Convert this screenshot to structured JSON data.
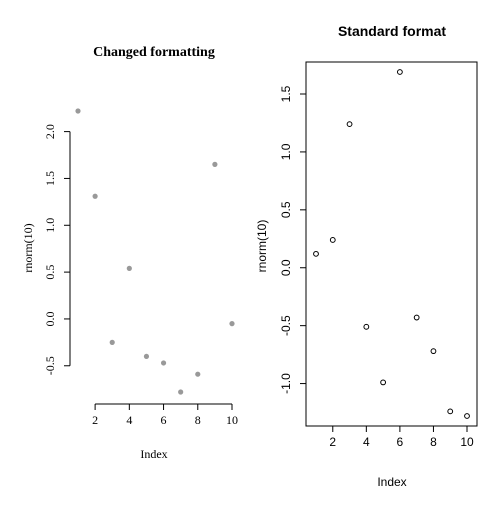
{
  "chart_data": [
    {
      "type": "scatter",
      "title": "Changed formatting",
      "xlabel": "Index",
      "ylabel": "rnorm(10)",
      "x": [
        1,
        2,
        3,
        4,
        5,
        6,
        7,
        8,
        9,
        10
      ],
      "y": [
        2.22,
        1.31,
        -0.25,
        0.54,
        -0.4,
        -0.47,
        -0.78,
        -0.59,
        1.65,
        -0.05
      ],
      "xlim": [
        1,
        10
      ],
      "ylim": [
        -0.78,
        2.22
      ],
      "x_ticks": [
        2,
        4,
        6,
        8,
        10
      ],
      "y_ticks": [
        -0.5,
        0.0,
        0.5,
        1.0,
        1.5,
        2.0
      ],
      "y_tick_labels": [
        "-0.5",
        "0.0",
        "0.5",
        "1.0",
        "1.5",
        "2.0"
      ],
      "point_color": "#999999",
      "point_style": "filled",
      "box": false,
      "grid": false
    },
    {
      "type": "scatter",
      "title": "Standard format",
      "xlabel": "Index",
      "ylabel": "rnorm(10)",
      "x": [
        1,
        2,
        3,
        4,
        5,
        6,
        7,
        8,
        9,
        10
      ],
      "y": [
        0.12,
        0.24,
        1.24,
        -0.51,
        -0.99,
        1.69,
        -0.43,
        -0.72,
        -1.24,
        -1.28
      ],
      "xlim": [
        1,
        10
      ],
      "ylim": [
        -1.28,
        1.69
      ],
      "x_ticks": [
        2,
        4,
        6,
        8,
        10
      ],
      "y_ticks": [
        -1.0,
        -0.5,
        0.0,
        0.5,
        1.0,
        1.5
      ],
      "y_tick_labels": [
        "-1.0",
        "-0.5",
        "0.0",
        "0.5",
        "1.0",
        "1.5"
      ],
      "point_color": "#000000",
      "point_style": "open",
      "box": true,
      "grid": false
    }
  ]
}
